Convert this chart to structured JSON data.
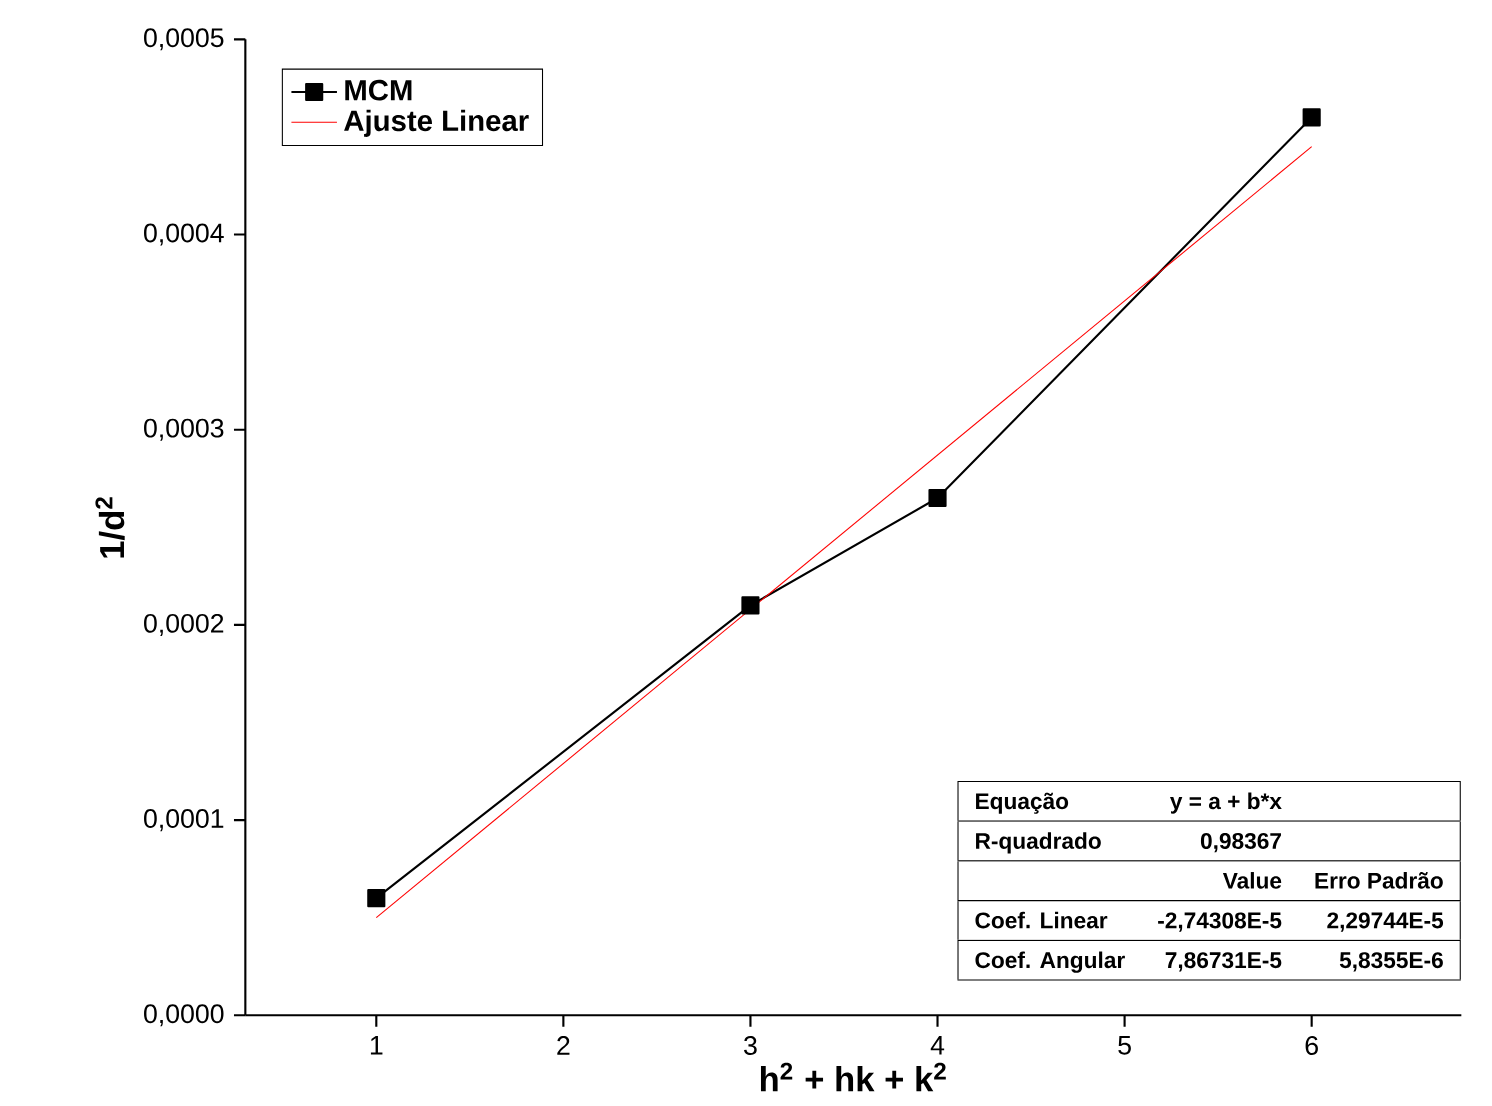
{
  "chart_data": {
    "type": "line",
    "xlabel": "h$^{2}$ + hk + k$^{2}$",
    "ylabel": "1/d$^{2}$",
    "x": [
      1,
      3,
      4,
      6
    ],
    "series": [
      {
        "name": "MCM",
        "color": "#000000",
        "values": [
          6e-05,
          0.00021,
          0.000265,
          0.00046
        ],
        "marker": "square",
        "line_style": "solid"
      },
      {
        "name": "Ajuste Linear",
        "color": "#ff0000",
        "x": [
          1,
          6
        ],
        "values": [
          5e-05,
          0.000445
        ],
        "marker": "none",
        "line_style": "solid"
      }
    ],
    "xlim": [
      0.3,
      6.8
    ],
    "xticks": [
      1,
      2,
      3,
      4,
      5,
      6
    ],
    "ylim": [
      0,
      0.0005
    ],
    "yticks": [
      {
        "value": 0,
        "label": "0,0000"
      },
      {
        "value": 0.0001,
        "label": "0,0001"
      },
      {
        "value": 0.0002,
        "label": "0,0002"
      },
      {
        "value": 0.0003,
        "label": "0,0003"
      },
      {
        "value": 0.0004,
        "label": "0,0004"
      },
      {
        "value": 0.0005,
        "label": "0,0005"
      }
    ],
    "grid": false,
    "legend": "top left",
    "annotations": [
      "Equação",
      "y = a + b*x",
      "R-quadrado",
      "0,98367",
      "Value",
      "Erro Padrão",
      "Coef. Linear",
      "-2,74308E-5",
      "2,29744E-5",
      "Coef. Angular",
      "7,86731E-5",
      "5,8355E-6"
    ]
  }
}
